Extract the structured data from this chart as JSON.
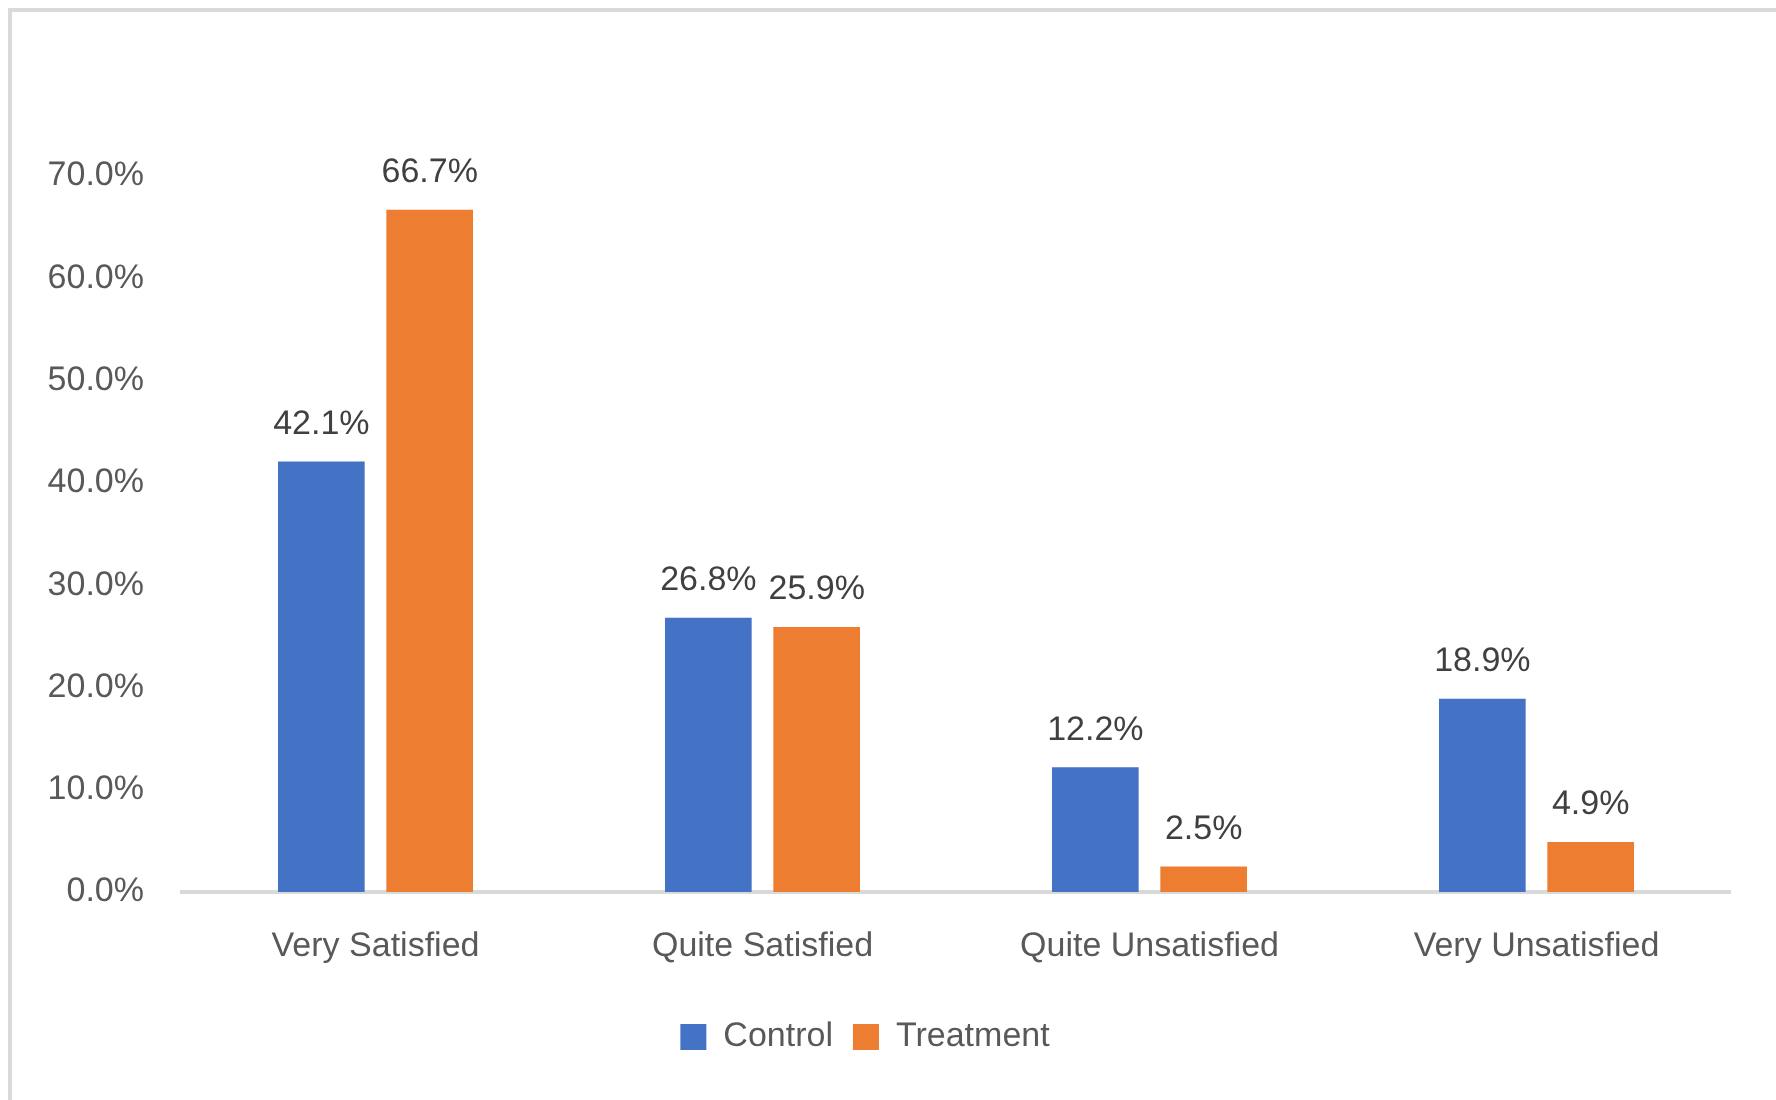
{
  "chart_data": {
    "type": "bar",
    "categories": [
      "Very Satisfied",
      "Quite Satisfied",
      "Quite Unsatisfied",
      "Very Unsatisfied"
    ],
    "series": [
      {
        "name": "Control",
        "color": "#4472c4",
        "values": [
          42.1,
          26.8,
          12.2,
          18.9
        ],
        "value_labels": [
          "42.1%",
          "26.8%",
          "12.2%",
          "18.9%"
        ]
      },
      {
        "name": "Treatment",
        "color": "#ed7d31",
        "values": [
          66.7,
          25.9,
          2.5,
          4.9
        ],
        "value_labels": [
          "66.7%",
          "25.9%",
          "2.5%",
          "4.9%"
        ]
      }
    ],
    "ylim": [
      0,
      70
    ],
    "yticks": [
      {
        "value": 0,
        "label": "0.0%"
      },
      {
        "value": 10,
        "label": "10.0%"
      },
      {
        "value": 20,
        "label": "20.0%"
      },
      {
        "value": 30,
        "label": "30.0%"
      },
      {
        "value": 40,
        "label": "40.0%"
      },
      {
        "value": 50,
        "label": "50.0%"
      },
      {
        "value": 60,
        "label": "60.0%"
      },
      {
        "value": 70,
        "label": "70.0%"
      }
    ],
    "legend": "bottom"
  }
}
